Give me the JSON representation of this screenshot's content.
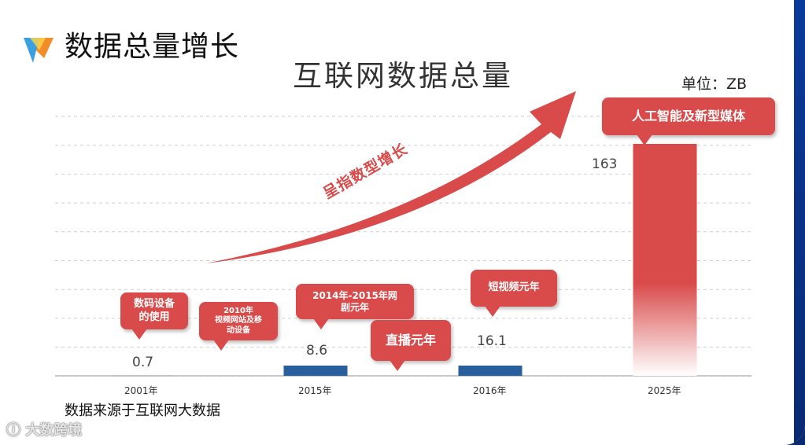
{
  "header": {
    "title": "数据总量增长"
  },
  "chart_data": {
    "type": "bar",
    "title": "互联网数据总量",
    "unit_label": "单位：ZB",
    "categories": [
      "2001年",
      "2015年",
      "2016年",
      "2025年"
    ],
    "values": [
      0.7,
      8.6,
      16.1,
      163
    ],
    "value_labels": [
      "0.7",
      "8.6",
      "16.1",
      "163"
    ],
    "ylim": [
      0,
      163
    ],
    "grid": true,
    "colors": {
      "bar": "#2a5f9e",
      "highlight": "#d94a4a",
      "arrow": "#d94a4a"
    },
    "trend_label": "呈指数型增长",
    "annotations": [
      {
        "text": "数码设备\n的使用"
      },
      {
        "text": "2010年\n视频网站及移\n动设备"
      },
      {
        "text": "2014年-2015年网\n剧元年"
      },
      {
        "text": "直播元年"
      },
      {
        "text": "短视频元年"
      },
      {
        "text": "人工智能及新型媒体"
      }
    ]
  },
  "footer": {
    "source": "数据来源于互联网大数据",
    "watermark": "大数跨境"
  }
}
